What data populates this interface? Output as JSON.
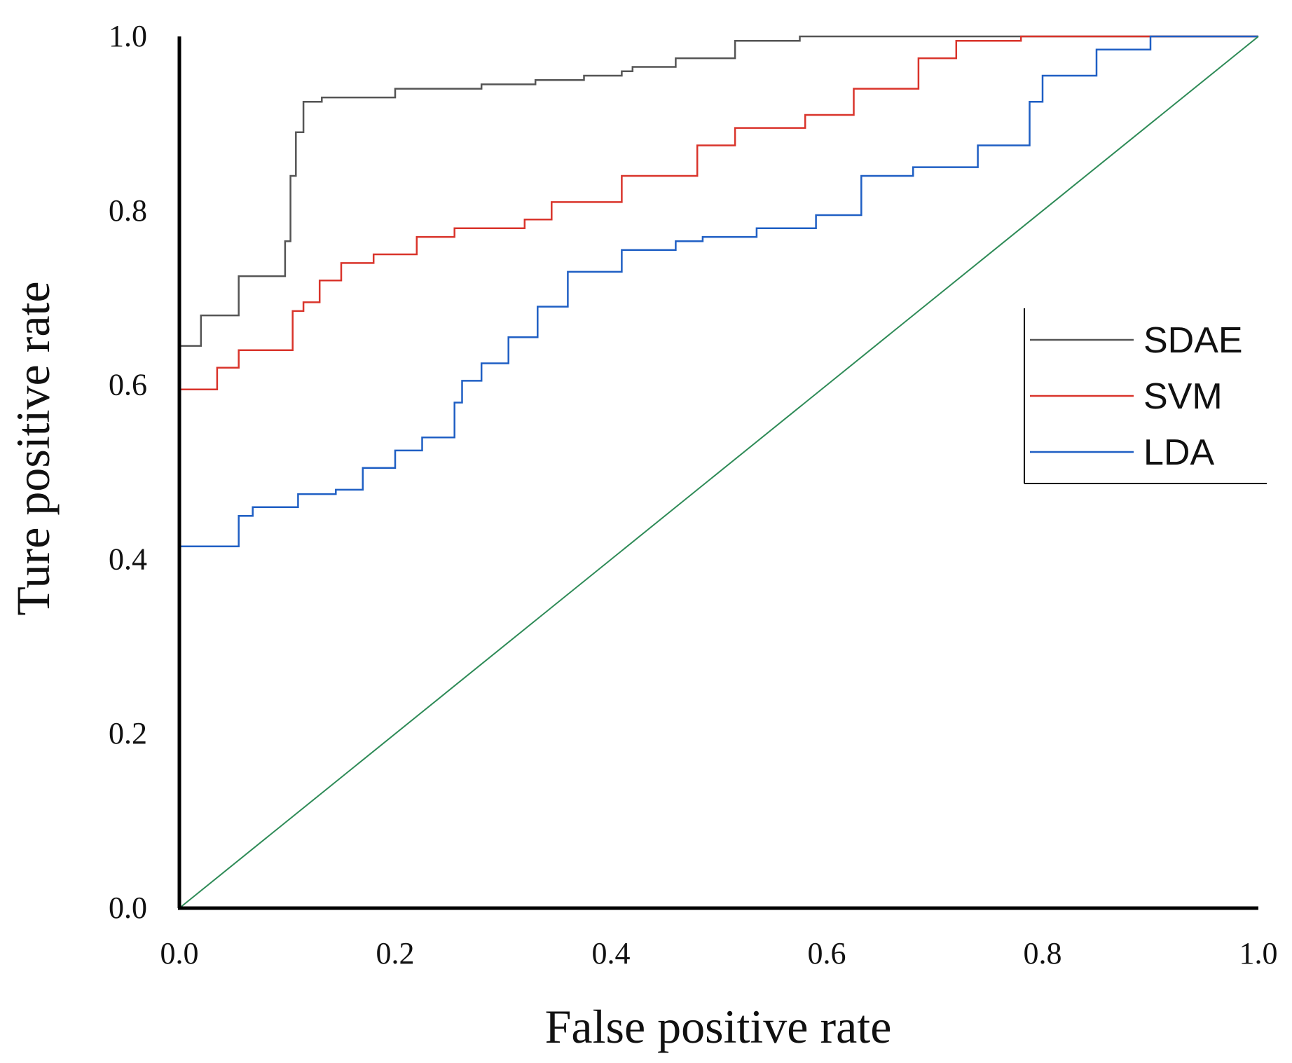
{
  "chart_data": {
    "type": "line",
    "title": "",
    "xlabel": "False positive rate",
    "ylabel": "Ture positive rate",
    "xlim": [
      0,
      1
    ],
    "ylim": [
      0,
      1
    ],
    "xticks": [
      "0.0",
      "0.2",
      "0.4",
      "0.6",
      "0.8",
      "1.0"
    ],
    "yticks": [
      "0.0",
      "0.2",
      "0.4",
      "0.6",
      "0.8",
      "1.0"
    ],
    "grid": false,
    "legend_position": "right",
    "series": [
      {
        "name": "SDAE",
        "color": "#555555",
        "x": [
          0.0,
          0.02,
          0.02,
          0.055,
          0.055,
          0.098,
          0.098,
          0.103,
          0.103,
          0.108,
          0.108,
          0.115,
          0.115,
          0.132,
          0.132,
          0.2,
          0.2,
          0.28,
          0.28,
          0.33,
          0.33,
          0.375,
          0.375,
          0.41,
          0.41,
          0.42,
          0.42,
          0.46,
          0.46,
          0.515,
          0.515,
          0.575,
          0.575,
          1.0
        ],
        "y": [
          0.645,
          0.645,
          0.68,
          0.68,
          0.725,
          0.725,
          0.765,
          0.765,
          0.84,
          0.84,
          0.89,
          0.89,
          0.925,
          0.925,
          0.93,
          0.93,
          0.94,
          0.94,
          0.945,
          0.945,
          0.95,
          0.95,
          0.955,
          0.955,
          0.96,
          0.96,
          0.965,
          0.965,
          0.975,
          0.975,
          0.995,
          0.995,
          1.0,
          1.0
        ]
      },
      {
        "name": "SVM",
        "color": "#d9342b",
        "x": [
          0.0,
          0.035,
          0.035,
          0.055,
          0.055,
          0.105,
          0.105,
          0.115,
          0.115,
          0.13,
          0.13,
          0.15,
          0.15,
          0.18,
          0.18,
          0.22,
          0.22,
          0.255,
          0.255,
          0.32,
          0.32,
          0.345,
          0.345,
          0.41,
          0.41,
          0.48,
          0.48,
          0.515,
          0.515,
          0.58,
          0.58,
          0.625,
          0.625,
          0.685,
          0.685,
          0.72,
          0.72,
          0.78,
          0.78,
          1.0
        ],
        "y": [
          0.595,
          0.595,
          0.62,
          0.62,
          0.64,
          0.64,
          0.685,
          0.685,
          0.695,
          0.695,
          0.72,
          0.72,
          0.74,
          0.74,
          0.75,
          0.75,
          0.77,
          0.77,
          0.78,
          0.78,
          0.79,
          0.79,
          0.81,
          0.81,
          0.84,
          0.84,
          0.875,
          0.875,
          0.895,
          0.895,
          0.91,
          0.91,
          0.94,
          0.94,
          0.975,
          0.975,
          0.995,
          0.995,
          1.0,
          1.0
        ]
      },
      {
        "name": "LDA",
        "color": "#1f5fc4",
        "x": [
          0.0,
          0.055,
          0.055,
          0.068,
          0.068,
          0.11,
          0.11,
          0.145,
          0.145,
          0.17,
          0.17,
          0.2,
          0.2,
          0.225,
          0.225,
          0.255,
          0.255,
          0.262,
          0.262,
          0.28,
          0.28,
          0.305,
          0.305,
          0.332,
          0.332,
          0.36,
          0.36,
          0.41,
          0.41,
          0.46,
          0.46,
          0.485,
          0.485,
          0.535,
          0.535,
          0.59,
          0.59,
          0.632,
          0.632,
          0.68,
          0.68,
          0.74,
          0.74,
          0.788,
          0.788,
          0.8,
          0.8,
          0.85,
          0.85,
          0.9,
          0.9,
          1.0
        ],
        "y": [
          0.415,
          0.415,
          0.45,
          0.45,
          0.46,
          0.46,
          0.475,
          0.475,
          0.48,
          0.48,
          0.505,
          0.505,
          0.525,
          0.525,
          0.54,
          0.54,
          0.58,
          0.58,
          0.605,
          0.605,
          0.625,
          0.625,
          0.655,
          0.655,
          0.69,
          0.69,
          0.73,
          0.73,
          0.755,
          0.755,
          0.765,
          0.765,
          0.77,
          0.77,
          0.78,
          0.78,
          0.795,
          0.795,
          0.84,
          0.84,
          0.85,
          0.85,
          0.875,
          0.875,
          0.925,
          0.925,
          0.955,
          0.955,
          0.985,
          0.985,
          1.0,
          1.0
        ]
      },
      {
        "name": "",
        "color": "#2e8b57",
        "x": [
          0.0,
          1.0
        ],
        "y": [
          0.0,
          1.0
        ]
      }
    ]
  }
}
